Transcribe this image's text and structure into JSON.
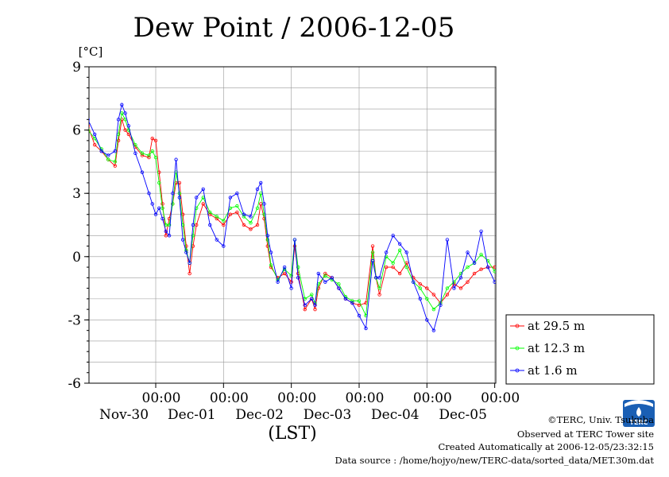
{
  "chart_data": {
    "type": "line",
    "title": "Dew Point / 2006-12-05",
    "ylabel": "[°C]",
    "xlabel": "(LST)",
    "ylim": [
      -6,
      9
    ],
    "y_ticks": [
      -6,
      -3,
      0,
      3,
      6,
      9
    ],
    "xlim_days": [
      0,
      6
    ],
    "x_ticks": [
      {
        "time": "00:00",
        "date": "Nov-30"
      },
      {
        "time": "00:00",
        "date": "Dec-01"
      },
      {
        "time": "00:00",
        "date": "Dec-02"
      },
      {
        "time": "00:00",
        "date": "Dec-03"
      },
      {
        "time": "00:00",
        "date": "Dec-04"
      },
      {
        "time": "00:00",
        "date": "Dec-05"
      }
    ],
    "grid": true,
    "legend_position": "right",
    "series": [
      {
        "name": "at 29.5 m",
        "color": "#ff0000",
        "points": [
          [
            0.0,
            6.2
          ],
          [
            0.1,
            5.3
          ],
          [
            0.2,
            5.0
          ],
          [
            0.3,
            4.6
          ],
          [
            0.4,
            4.3
          ],
          [
            0.45,
            5.5
          ],
          [
            0.5,
            6.5
          ],
          [
            0.55,
            6.0
          ],
          [
            0.6,
            5.8
          ],
          [
            0.7,
            5.2
          ],
          [
            0.8,
            4.8
          ],
          [
            0.9,
            4.7
          ],
          [
            0.95,
            5.6
          ],
          [
            1.0,
            5.5
          ],
          [
            1.05,
            4.0
          ],
          [
            1.1,
            2.5
          ],
          [
            1.15,
            1.0
          ],
          [
            1.2,
            1.8
          ],
          [
            1.25,
            2.5
          ],
          [
            1.3,
            3.5
          ],
          [
            1.35,
            3.5
          ],
          [
            1.4,
            2.0
          ],
          [
            1.45,
            0.5
          ],
          [
            1.5,
            -0.8
          ],
          [
            1.55,
            0.5
          ],
          [
            1.6,
            1.5
          ],
          [
            1.7,
            2.5
          ],
          [
            1.8,
            2.0
          ],
          [
            1.9,
            1.8
          ],
          [
            2.0,
            1.5
          ],
          [
            2.1,
            2.0
          ],
          [
            2.2,
            2.1
          ],
          [
            2.3,
            1.5
          ],
          [
            2.4,
            1.3
          ],
          [
            2.5,
            1.5
          ],
          [
            2.55,
            2.5
          ],
          [
            2.6,
            1.8
          ],
          [
            2.65,
            0.5
          ],
          [
            2.7,
            -0.5
          ],
          [
            2.8,
            -1.0
          ],
          [
            2.9,
            -0.8
          ],
          [
            3.0,
            -1.2
          ],
          [
            3.05,
            0.5
          ],
          [
            3.1,
            -0.8
          ],
          [
            3.2,
            -2.5
          ],
          [
            3.3,
            -2.0
          ],
          [
            3.35,
            -2.5
          ],
          [
            3.4,
            -1.5
          ],
          [
            3.5,
            -0.8
          ],
          [
            3.6,
            -1.0
          ],
          [
            3.7,
            -1.5
          ],
          [
            3.8,
            -2.0
          ],
          [
            3.9,
            -2.2
          ],
          [
            4.0,
            -2.3
          ],
          [
            4.1,
            -2.2
          ],
          [
            4.2,
            0.5
          ],
          [
            4.25,
            -1.0
          ],
          [
            4.3,
            -1.8
          ],
          [
            4.4,
            -0.5
          ],
          [
            4.5,
            -0.5
          ],
          [
            4.6,
            -0.8
          ],
          [
            4.7,
            -0.3
          ],
          [
            4.8,
            -1.0
          ],
          [
            4.9,
            -1.3
          ],
          [
            5.0,
            -1.5
          ],
          [
            5.1,
            -1.8
          ],
          [
            5.2,
            -2.2
          ],
          [
            5.3,
            -1.8
          ],
          [
            5.4,
            -1.3
          ],
          [
            5.5,
            -1.5
          ],
          [
            5.6,
            -1.2
          ],
          [
            5.7,
            -0.8
          ],
          [
            5.8,
            -0.6
          ],
          [
            5.9,
            -0.5
          ],
          [
            6.0,
            -0.5
          ]
        ]
      },
      {
        "name": "at 12.3 m",
        "color": "#00ff00",
        "points": [
          [
            0.0,
            6.0
          ],
          [
            0.1,
            5.6
          ],
          [
            0.2,
            5.1
          ],
          [
            0.3,
            4.6
          ],
          [
            0.4,
            4.5
          ],
          [
            0.45,
            5.8
          ],
          [
            0.5,
            6.8
          ],
          [
            0.55,
            6.5
          ],
          [
            0.6,
            6.0
          ],
          [
            0.7,
            5.3
          ],
          [
            0.8,
            4.9
          ],
          [
            0.9,
            4.8
          ],
          [
            0.95,
            5.0
          ],
          [
            1.0,
            4.7
          ],
          [
            1.05,
            3.5
          ],
          [
            1.1,
            2.3
          ],
          [
            1.15,
            1.5
          ],
          [
            1.2,
            1.5
          ],
          [
            1.25,
            2.5
          ],
          [
            1.3,
            4.0
          ],
          [
            1.35,
            3.0
          ],
          [
            1.4,
            1.5
          ],
          [
            1.45,
            0.3
          ],
          [
            1.5,
            -0.3
          ],
          [
            1.55,
            1.0
          ],
          [
            1.6,
            2.3
          ],
          [
            1.7,
            2.8
          ],
          [
            1.8,
            2.1
          ],
          [
            1.9,
            1.9
          ],
          [
            2.0,
            1.7
          ],
          [
            2.1,
            2.3
          ],
          [
            2.2,
            2.4
          ],
          [
            2.3,
            1.9
          ],
          [
            2.4,
            1.6
          ],
          [
            2.5,
            2.3
          ],
          [
            2.55,
            3.0
          ],
          [
            2.6,
            2.0
          ],
          [
            2.65,
            0.8
          ],
          [
            2.7,
            -0.4
          ],
          [
            2.8,
            -1.1
          ],
          [
            2.9,
            -0.6
          ],
          [
            3.0,
            -0.9
          ],
          [
            3.05,
            0.8
          ],
          [
            3.1,
            -0.5
          ],
          [
            3.2,
            -2.0
          ],
          [
            3.3,
            -1.8
          ],
          [
            3.35,
            -2.2
          ],
          [
            3.4,
            -1.3
          ],
          [
            3.5,
            -0.9
          ],
          [
            3.6,
            -1.1
          ],
          [
            3.7,
            -1.3
          ],
          [
            3.8,
            -1.9
          ],
          [
            3.9,
            -2.1
          ],
          [
            4.0,
            -2.1
          ],
          [
            4.1,
            -2.8
          ],
          [
            4.2,
            0.2
          ],
          [
            4.25,
            -1.0
          ],
          [
            4.3,
            -1.5
          ],
          [
            4.4,
            0.0
          ],
          [
            4.5,
            -0.3
          ],
          [
            4.6,
            0.3
          ],
          [
            4.7,
            -0.5
          ],
          [
            4.8,
            -1.2
          ],
          [
            4.9,
            -1.5
          ],
          [
            5.0,
            -2.0
          ],
          [
            5.1,
            -2.5
          ],
          [
            5.2,
            -2.2
          ],
          [
            5.3,
            -1.5
          ],
          [
            5.4,
            -1.2
          ],
          [
            5.5,
            -0.8
          ],
          [
            5.6,
            -0.5
          ],
          [
            5.7,
            -0.3
          ],
          [
            5.8,
            0.1
          ],
          [
            5.9,
            -0.2
          ],
          [
            6.0,
            -0.7
          ]
        ]
      },
      {
        "name": "at 1.6 m",
        "color": "#0000ff",
        "points": [
          [
            0.0,
            6.5
          ],
          [
            0.1,
            5.8
          ],
          [
            0.2,
            5.0
          ],
          [
            0.3,
            4.8
          ],
          [
            0.4,
            5.0
          ],
          [
            0.45,
            6.5
          ],
          [
            0.5,
            7.2
          ],
          [
            0.55,
            6.8
          ],
          [
            0.6,
            6.2
          ],
          [
            0.7,
            4.9
          ],
          [
            0.8,
            4.0
          ],
          [
            0.9,
            3.0
          ],
          [
            0.95,
            2.5
          ],
          [
            1.0,
            2.0
          ],
          [
            1.05,
            2.3
          ],
          [
            1.1,
            1.8
          ],
          [
            1.15,
            1.2
          ],
          [
            1.2,
            1.0
          ],
          [
            1.25,
            3.0
          ],
          [
            1.3,
            4.6
          ],
          [
            1.35,
            2.8
          ],
          [
            1.4,
            0.8
          ],
          [
            1.45,
            0.2
          ],
          [
            1.5,
            -0.3
          ],
          [
            1.55,
            1.5
          ],
          [
            1.6,
            2.8
          ],
          [
            1.7,
            3.2
          ],
          [
            1.8,
            1.5
          ],
          [
            1.9,
            0.8
          ],
          [
            2.0,
            0.5
          ],
          [
            2.1,
            2.8
          ],
          [
            2.2,
            3.0
          ],
          [
            2.3,
            2.0
          ],
          [
            2.4,
            1.9
          ],
          [
            2.5,
            3.2
          ],
          [
            2.55,
            3.5
          ],
          [
            2.6,
            2.5
          ],
          [
            2.65,
            1.0
          ],
          [
            2.7,
            0.2
          ],
          [
            2.8,
            -1.2
          ],
          [
            2.9,
            -0.5
          ],
          [
            3.0,
            -1.5
          ],
          [
            3.05,
            0.8
          ],
          [
            3.1,
            -1.0
          ],
          [
            3.2,
            -2.3
          ],
          [
            3.3,
            -2.0
          ],
          [
            3.35,
            -2.3
          ],
          [
            3.4,
            -0.8
          ],
          [
            3.5,
            -1.2
          ],
          [
            3.6,
            -1.0
          ],
          [
            3.7,
            -1.5
          ],
          [
            3.8,
            -2.0
          ],
          [
            3.9,
            -2.2
          ],
          [
            4.0,
            -2.8
          ],
          [
            4.1,
            -3.4
          ],
          [
            4.2,
            -0.2
          ],
          [
            4.25,
            -1.0
          ],
          [
            4.3,
            -1.0
          ],
          [
            4.4,
            0.2
          ],
          [
            4.5,
            1.0
          ],
          [
            4.6,
            0.6
          ],
          [
            4.7,
            0.2
          ],
          [
            4.8,
            -1.2
          ],
          [
            4.9,
            -2.0
          ],
          [
            5.0,
            -3.0
          ],
          [
            5.1,
            -3.5
          ],
          [
            5.2,
            -2.3
          ],
          [
            5.3,
            0.8
          ],
          [
            5.4,
            -1.5
          ],
          [
            5.5,
            -1.0
          ],
          [
            5.6,
            0.2
          ],
          [
            5.7,
            -0.3
          ],
          [
            5.8,
            1.2
          ],
          [
            5.9,
            -0.5
          ],
          [
            6.0,
            -1.2
          ]
        ]
      }
    ]
  },
  "credits": [
    "©TERC, Univ. Tsukuba",
    "Observed at TERC Tower site",
    "Created Automatically at 2006-12-05/23:32:15",
    "Data source : /home/hojyo/new/TERC-data/sorted_data/MET.30m.dat"
  ],
  "logo": {
    "text": "TERC",
    "color": "#1a5fb4"
  }
}
